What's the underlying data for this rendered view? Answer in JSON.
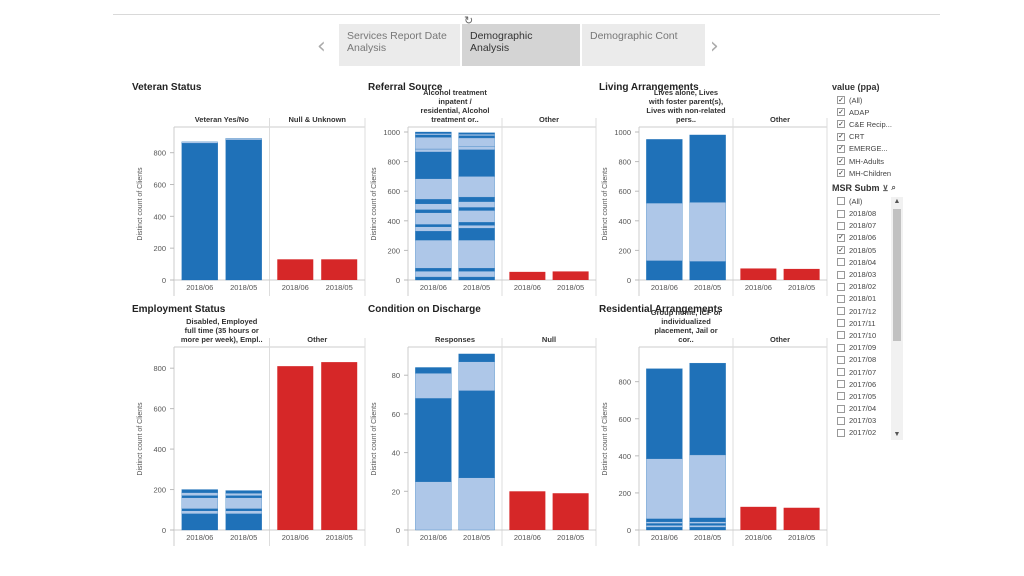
{
  "loading_icon": "spinner-icon",
  "tabs": [
    {
      "label": "Services Report Date Analysis",
      "active": false
    },
    {
      "label": "Demographic Analysis",
      "active": true
    },
    {
      "label": "Demographic Cont",
      "active": false
    }
  ],
  "nav": {
    "prev": "‹",
    "next": "›"
  },
  "colors": {
    "dark": "#1f71b8",
    "light": "#aec7e8",
    "red": "#d62728",
    "axis": "#999999"
  },
  "panels": [
    {
      "id": "veteran-status",
      "title": "Veteran Status",
      "headers": [
        "Veteran Yes/No",
        "Null & Unknown"
      ],
      "ylabel": "Distinct count of Clients",
      "ticks": [
        0,
        200,
        400,
        600,
        800
      ],
      "ymax": 930,
      "categories": [
        "2018/06",
        "2018/05",
        "2018/06",
        "2018/05"
      ],
      "bars": [
        {
          "segments": [
            {
              "v": 860,
              "c": "dark"
            },
            {
              "v": 8,
              "c": "light"
            }
          ]
        },
        {
          "segments": [
            {
              "v": 880,
              "c": "dark"
            },
            {
              "v": 10,
              "c": "light"
            }
          ]
        },
        {
          "segments": [
            {
              "v": 130,
              "c": "red"
            }
          ]
        },
        {
          "segments": [
            {
              "v": 130,
              "c": "red"
            }
          ]
        }
      ]
    },
    {
      "id": "referral-source",
      "title": "Referral Source",
      "headers": [
        "Alcohol treatment inpatent / residential, Alcohol treatment or..",
        "Other"
      ],
      "ylabel": "Distinct count of Clients",
      "ticks": [
        0,
        200,
        400,
        600,
        800,
        1000
      ],
      "ymax": 1000,
      "categories": [
        "2018/06",
        "2018/05",
        "2018/06",
        "2018/05"
      ],
      "bars": [
        {
          "segments": [
            {
              "v": 20,
              "c": "dark"
            },
            {
              "v": 40,
              "c": "light"
            },
            {
              "v": 20,
              "c": "dark"
            },
            {
              "v": 190,
              "c": "light"
            },
            {
              "v": 60,
              "c": "dark"
            },
            {
              "v": 30,
              "c": "light"
            },
            {
              "v": 15,
              "c": "dark"
            },
            {
              "v": 80,
              "c": "light"
            },
            {
              "v": 20,
              "c": "dark"
            },
            {
              "v": 40,
              "c": "light"
            },
            {
              "v": 30,
              "c": "dark"
            },
            {
              "v": 140,
              "c": "light"
            },
            {
              "v": 180,
              "c": "dark"
            },
            {
              "v": 20,
              "c": "light"
            },
            {
              "v": 80,
              "c": "light"
            },
            {
              "v": 15,
              "c": "dark"
            },
            {
              "v": 10,
              "c": "light"
            },
            {
              "v": 10,
              "c": "dark"
            }
          ]
        },
        {
          "segments": [
            {
              "v": 20,
              "c": "dark"
            },
            {
              "v": 40,
              "c": "light"
            },
            {
              "v": 20,
              "c": "dark"
            },
            {
              "v": 190,
              "c": "light"
            },
            {
              "v": 80,
              "c": "dark"
            },
            {
              "v": 20,
              "c": "light"
            },
            {
              "v": 20,
              "c": "dark"
            },
            {
              "v": 80,
              "c": "light"
            },
            {
              "v": 20,
              "c": "dark"
            },
            {
              "v": 40,
              "c": "light"
            },
            {
              "v": 30,
              "c": "dark"
            },
            {
              "v": 140,
              "c": "light"
            },
            {
              "v": 180,
              "c": "dark"
            },
            {
              "v": 20,
              "c": "light"
            },
            {
              "v": 60,
              "c": "light"
            },
            {
              "v": 15,
              "c": "dark"
            },
            {
              "v": 10,
              "c": "light"
            },
            {
              "v": 10,
              "c": "dark"
            }
          ]
        },
        {
          "segments": [
            {
              "v": 55,
              "c": "red"
            }
          ]
        },
        {
          "segments": [
            {
              "v": 58,
              "c": "red"
            }
          ]
        }
      ]
    },
    {
      "id": "living-arrangements",
      "title": "Living Arrangements",
      "headers": [
        "Lives alone, Lives with foster parent(s), Lives with non-related pers..",
        "Other"
      ],
      "ylabel": "Distinct count of Clients",
      "ticks": [
        0,
        200,
        400,
        600,
        800,
        1000
      ],
      "ymax": 1000,
      "categories": [
        "2018/06",
        "2018/05",
        "2018/06",
        "2018/05"
      ],
      "bars": [
        {
          "segments": [
            {
              "v": 130,
              "c": "dark"
            },
            {
              "v": 390,
              "c": "light"
            },
            {
              "v": 430,
              "c": "dark"
            }
          ]
        },
        {
          "segments": [
            {
              "v": 125,
              "c": "dark"
            },
            {
              "v": 400,
              "c": "light"
            },
            {
              "v": 455,
              "c": "dark"
            }
          ]
        },
        {
          "segments": [
            {
              "v": 78,
              "c": "red"
            }
          ]
        },
        {
          "segments": [
            {
              "v": 75,
              "c": "red"
            }
          ]
        }
      ]
    },
    {
      "id": "employment-status",
      "title": "Employment Status",
      "headers": [
        "Disabled, Employed full time (35 hours or more per week), Empl..",
        "Other"
      ],
      "ylabel": "Distinct count of Clients",
      "ticks": [
        0,
        200,
        400,
        600,
        800
      ],
      "ymax": 880,
      "categories": [
        "2018/06",
        "2018/05",
        "2018/06",
        "2018/05"
      ],
      "bars": [
        {
          "segments": [
            {
              "v": 80,
              "c": "dark"
            },
            {
              "v": 15,
              "c": "light"
            },
            {
              "v": 10,
              "c": "dark"
            },
            {
              "v": 55,
              "c": "light"
            },
            {
              "v": 10,
              "c": "dark"
            },
            {
              "v": 15,
              "c": "light"
            },
            {
              "v": 15,
              "c": "dark"
            }
          ]
        },
        {
          "segments": [
            {
              "v": 80,
              "c": "dark"
            },
            {
              "v": 15,
              "c": "light"
            },
            {
              "v": 10,
              "c": "dark"
            },
            {
              "v": 55,
              "c": "light"
            },
            {
              "v": 10,
              "c": "dark"
            },
            {
              "v": 12,
              "c": "light"
            },
            {
              "v": 13,
              "c": "dark"
            }
          ]
        },
        {
          "segments": [
            {
              "v": 810,
              "c": "red"
            }
          ]
        },
        {
          "segments": [
            {
              "v": 830,
              "c": "red"
            }
          ]
        }
      ]
    },
    {
      "id": "condition-on-discharge",
      "title": "Condition on Discharge",
      "headers": [
        "Responses",
        "Null"
      ],
      "ylabel": "Distinct count of Clients",
      "ticks": [
        0,
        20,
        40,
        60,
        80
      ],
      "ymax": 92,
      "categories": [
        "2018/06",
        "2018/05",
        "2018/06",
        "2018/05"
      ],
      "bars": [
        {
          "segments": [
            {
              "v": 25,
              "c": "light"
            },
            {
              "v": 43,
              "c": "dark"
            },
            {
              "v": 13,
              "c": "light"
            },
            {
              "v": 3,
              "c": "dark"
            }
          ]
        },
        {
          "segments": [
            {
              "v": 27,
              "c": "light"
            },
            {
              "v": 45,
              "c": "dark"
            },
            {
              "v": 15,
              "c": "light"
            },
            {
              "v": 4,
              "c": "dark"
            }
          ]
        },
        {
          "segments": [
            {
              "v": 20,
              "c": "red"
            }
          ]
        },
        {
          "segments": [
            {
              "v": 19,
              "c": "red"
            }
          ]
        }
      ]
    },
    {
      "id": "residential-arrangements",
      "title": "Residential Arrangements",
      "headers": [
        "Group home, ICF or individualized placement, Jail or cor..",
        "Other"
      ],
      "ylabel": "Distinct count of Clients",
      "ticks": [
        0,
        200,
        400,
        600,
        800
      ],
      "ymax": 960,
      "categories": [
        "2018/06",
        "2018/05",
        "2018/06",
        "2018/05"
      ],
      "bars": [
        {
          "segments": [
            {
              "v": 15,
              "c": "dark"
            },
            {
              "v": 10,
              "c": "light"
            },
            {
              "v": 10,
              "c": "dark"
            },
            {
              "v": 10,
              "c": "light"
            },
            {
              "v": 15,
              "c": "dark"
            },
            {
              "v": 325,
              "c": "light"
            },
            {
              "v": 485,
              "c": "dark"
            }
          ]
        },
        {
          "segments": [
            {
              "v": 15,
              "c": "dark"
            },
            {
              "v": 10,
              "c": "light"
            },
            {
              "v": 10,
              "c": "dark"
            },
            {
              "v": 10,
              "c": "light"
            },
            {
              "v": 20,
              "c": "dark"
            },
            {
              "v": 340,
              "c": "light"
            },
            {
              "v": 495,
              "c": "dark"
            }
          ]
        },
        {
          "segments": [
            {
              "v": 125,
              "c": "red"
            }
          ]
        },
        {
          "segments": [
            {
              "v": 120,
              "c": "red"
            }
          ]
        }
      ]
    }
  ],
  "filters": {
    "value": {
      "title": "value (ppa)",
      "items": [
        {
          "label": "(All)",
          "checked": true
        },
        {
          "label": "ADAP",
          "checked": true
        },
        {
          "label": "C&E Recip...",
          "checked": true
        },
        {
          "label": "CRT",
          "checked": true
        },
        {
          "label": "EMERGE...",
          "checked": true
        },
        {
          "label": "MH-Adults",
          "checked": true
        },
        {
          "label": "MH-Children",
          "checked": true
        }
      ]
    },
    "msr": {
      "title": "MSR Subm",
      "items": [
        {
          "label": "(All)",
          "checked": false
        },
        {
          "label": "2018/08",
          "checked": false
        },
        {
          "label": "2018/07",
          "checked": false
        },
        {
          "label": "2018/06",
          "checked": true
        },
        {
          "label": "2018/05",
          "checked": true
        },
        {
          "label": "2018/04",
          "checked": false
        },
        {
          "label": "2018/03",
          "checked": false
        },
        {
          "label": "2018/02",
          "checked": false
        },
        {
          "label": "2018/01",
          "checked": false
        },
        {
          "label": "2017/12",
          "checked": false
        },
        {
          "label": "2017/11",
          "checked": false
        },
        {
          "label": "2017/10",
          "checked": false
        },
        {
          "label": "2017/09",
          "checked": false
        },
        {
          "label": "2017/08",
          "checked": false
        },
        {
          "label": "2017/07",
          "checked": false
        },
        {
          "label": "2017/06",
          "checked": false
        },
        {
          "label": "2017/05",
          "checked": false
        },
        {
          "label": "2017/04",
          "checked": false
        },
        {
          "label": "2017/03",
          "checked": false
        },
        {
          "label": "2017/02",
          "checked": false
        }
      ]
    }
  }
}
